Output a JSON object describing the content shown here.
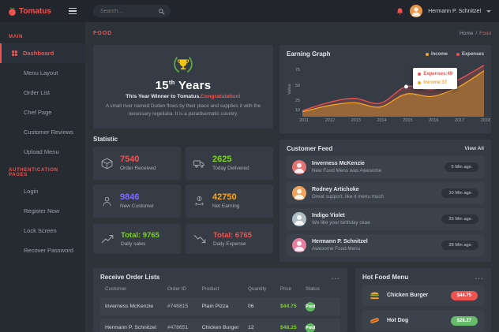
{
  "header": {
    "logo_text": "Tomatus",
    "search_placeholder": "Search...",
    "user_name": "Hermann P. Schnitzel"
  },
  "sidebar": {
    "sections": [
      {
        "label": "MAIN",
        "items": [
          {
            "label": "Dashboard"
          },
          {
            "label": "Menu Layout"
          },
          {
            "label": "Order List"
          },
          {
            "label": "Chef Page"
          },
          {
            "label": "Customer Reviews"
          },
          {
            "label": "Upload Menu"
          }
        ]
      },
      {
        "label": "AUTHENTICATION PAGES",
        "items": [
          {
            "label": "Login"
          },
          {
            "label": "Register Now"
          },
          {
            "label": "Lock Screen"
          },
          {
            "label": "Recover Password"
          }
        ]
      }
    ]
  },
  "breadcrumb": {
    "page_title": "FOOD",
    "home": "Home",
    "separator": "/",
    "current": "Food"
  },
  "anniversary": {
    "years_number": "15",
    "years_suffix": "th",
    "years_word": "Years",
    "subtitle": "This Year Winner to Tomatus.",
    "subtitle_highlight": "Congratulation!",
    "description": "A small river named Duden flows by their place and supplies it with the necessary regelialia. It is a paradisematic country."
  },
  "statistic": {
    "title": "Statistic",
    "cards": [
      {
        "value": "7540",
        "label": "Order Received",
        "value_color": "#ef5350",
        "icon": "package-icon"
      },
      {
        "value": "2625",
        "label": "Today Delivered",
        "value_color": "#7ed321",
        "icon": "truck-icon"
      },
      {
        "value": "9846",
        "label": "New Customer",
        "value_color": "#7c6cff",
        "icon": "customer-icon"
      },
      {
        "value": "42750",
        "label": "Net Earning",
        "value_color": "#f5a623",
        "icon": "earning-icon"
      }
    ],
    "totals": [
      {
        "value": "Total: 9765",
        "label": "Daily sales",
        "value_color": "#7ed321",
        "icon": "sales-up-icon"
      },
      {
        "value": "Total: 6765",
        "label": "Daily Expense",
        "value_color": "#ef5350",
        "icon": "expense-down-icon"
      }
    ]
  },
  "chart_data": {
    "type": "area",
    "title": "Earning Graph",
    "ylabel": "Value",
    "categories": [
      "2011",
      "2012",
      "2013",
      "2014",
      "2015",
      "2016",
      "2017",
      "2018"
    ],
    "yticks": [
      10,
      25,
      50,
      75
    ],
    "ylim": [
      0,
      90
    ],
    "grid": false,
    "legend_position": "top-right",
    "series": [
      {
        "name": "Income",
        "color": "#f5a623",
        "fill_opacity": 0.38,
        "values": [
          8,
          18,
          23,
          16,
          37,
          33,
          48,
          75
        ]
      },
      {
        "name": "Expenses",
        "color": "#ef5350",
        "fill_opacity": 0.22,
        "values": [
          10,
          23,
          30,
          22,
          49,
          44,
          60,
          84
        ]
      }
    ],
    "tooltip": {
      "point_index": 4,
      "entries": [
        {
          "label": "Expenses:49",
          "color": "#ef5350"
        },
        {
          "label": "Income:37",
          "color": "#f5a623"
        }
      ]
    }
  },
  "customer_feed": {
    "title": "Customer Feed",
    "view_all": "View All",
    "items": [
      {
        "name": "Inverness McKenzie",
        "message": "New Food Menu was Awesome",
        "time": "5 Min ago",
        "avatar_color": "#e57373"
      },
      {
        "name": "Rodney Artichoke",
        "message": "Great support, like it menu much",
        "time": "10 Min ago",
        "avatar_color": "#efa35c"
      },
      {
        "name": "Indigo Violet",
        "message": "We like your birthday ckae",
        "time": "25 Min ago",
        "avatar_color": "#b0bec5"
      },
      {
        "name": "Hermann P. Schnitzel",
        "message": "Awesome Food Menu",
        "time": "28 Min ago",
        "avatar_color": "#e57fa0"
      }
    ]
  },
  "orders": {
    "title": "Receive Order Lists",
    "more": "...",
    "columns": [
      "Customer",
      "Order ID",
      "Product",
      "Quantity",
      "Price",
      "Status"
    ],
    "rows": [
      {
        "customer": "Inverness McKenzie",
        "order_id": "#746815",
        "product": "Plain Pizza",
        "quantity": "06",
        "price": "$44.75",
        "status": "Paid"
      },
      {
        "customer": "Hermann P. Schnitzel",
        "order_id": "#478651",
        "product": "Chicken Burger",
        "quantity": "12",
        "price": "$48.25",
        "status": "Paid"
      }
    ]
  },
  "hot_food": {
    "title": "Hot Food Menu",
    "more": "...",
    "items": [
      {
        "name": "Chicken Burger",
        "price": "$44.75",
        "badge_color": "#ef5350"
      },
      {
        "name": "Hot Dog",
        "price": "$28.27",
        "badge_color": "#66bb6a"
      }
    ]
  }
}
